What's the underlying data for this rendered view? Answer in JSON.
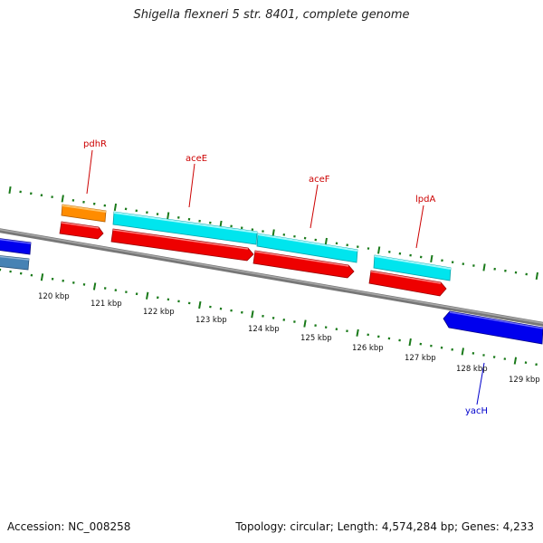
{
  "title": "Shigella flexneri 5 str. 8401, complete genome",
  "footer": {
    "accession": "Accession: NC_008258",
    "summary": "Topology: circular; Length: 4,574,284 bp; Genes: 4,233"
  },
  "scale_labels": [
    "120 kbp",
    "121 kbp",
    "122 kbp",
    "123 kbp",
    "124 kbp",
    "125 kbp",
    "126 kbp",
    "127 kbp",
    "128 kbp",
    "129 kbp"
  ],
  "gene_labels": [
    {
      "name": "pdhR",
      "color": "#cc0000"
    },
    {
      "name": "aceE",
      "color": "#cc0000"
    },
    {
      "name": "aceF",
      "color": "#cc0000"
    },
    {
      "name": "lpdA",
      "color": "#cc0000"
    },
    {
      "name": "yacH",
      "color": "#0000cc"
    }
  ],
  "colors": {
    "backbone": "#8a8a8a",
    "ticks": "#1a7a1a",
    "orange_feature": "#ff8c00",
    "cyan_feature": "#00e5ee",
    "red_feature": "#ee0000",
    "blue_feature": "#0000ee",
    "steelblue_feature": "#4682b4"
  }
}
